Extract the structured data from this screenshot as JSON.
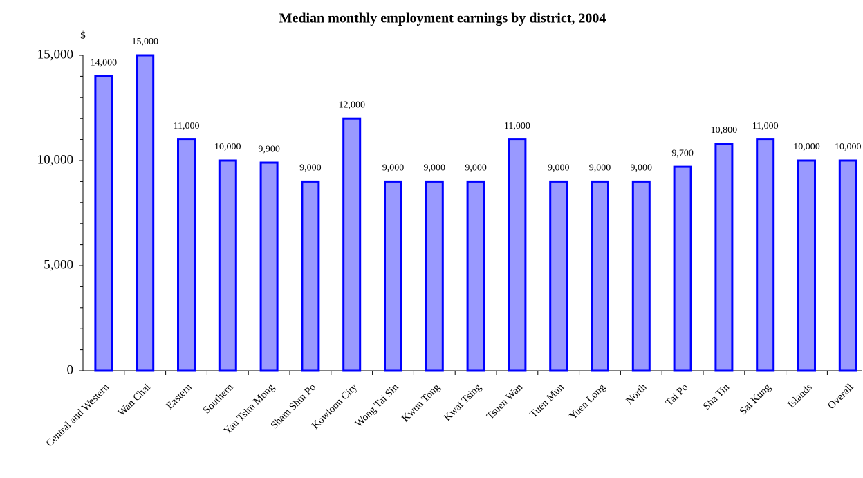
{
  "chart_data": {
    "type": "bar",
    "title": "Median monthly employment earnings by district, 2004",
    "y_unit": "$",
    "categories": [
      "Central and Western",
      "Wan Chai",
      "Eastern",
      "Southern",
      "Yau Tsim Mong",
      "Sham Shui Po",
      "Kowloon City",
      "Wong Tai Sin",
      "Kwun Tong",
      "Kwai Tsing",
      "Tsuen Wan",
      "Tuen Mun",
      "Yuen Long",
      "North",
      "Tai Po",
      "Sha Tin",
      "Sai Kung",
      "Islands",
      "Overall"
    ],
    "values": [
      14000,
      15000,
      11000,
      10000,
      9900,
      9000,
      12000,
      9000,
      9000,
      9000,
      11000,
      9000,
      9000,
      9000,
      9700,
      10800,
      11000,
      10000,
      10000
    ],
    "value_labels": [
      "14,000",
      "15,000",
      "11,000",
      "10,000",
      "9,900",
      "9,000",
      "12,000",
      "9,000",
      "9,000",
      "9,000",
      "11,000",
      "9,000",
      "9,000",
      "9,000",
      "9,700",
      "10,800",
      "11,000",
      "10,000",
      "10,000"
    ],
    "color": "#9999ff",
    "edge_color": "#0000ff",
    "ylim": [
      0,
      15000
    ],
    "yticks": [
      0,
      {
        "value": 5000,
        "label": "5,000"
      },
      {
        "value": 10000,
        "label": "10,000"
      },
      {
        "value": 15000,
        "label": "15,000"
      }
    ],
    "y_minor_ticks": [
      1000,
      2000,
      3000,
      4000,
      6000,
      7000,
      8000,
      9000,
      11000,
      12000,
      13000,
      14000
    ],
    "grid": false
  }
}
